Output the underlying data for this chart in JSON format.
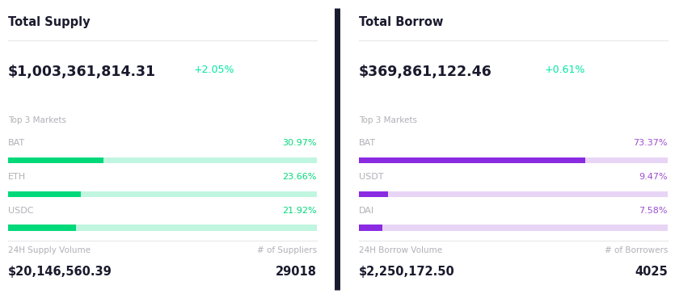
{
  "bg_color": "#ffffff",
  "supply": {
    "title": "Total Supply",
    "total": "$1,003,361,814.31",
    "change": "+2.05%",
    "change_color": "#00e8a2",
    "top3_label": "Top 3 Markets",
    "markets": [
      "BAT",
      "ETH",
      "USDC"
    ],
    "percentages": [
      30.97,
      23.66,
      21.92
    ],
    "pct_labels": [
      "30.97%",
      "23.66%",
      "21.92%"
    ],
    "bar_fill_color": "#00d97a",
    "bar_bg_color": "#c0f5e0",
    "pct_color": "#00d97a",
    "vol_label": "24H Supply Volume",
    "vol_value": "$20,146,560.39",
    "count_label": "# of Suppliers",
    "count_value": "29018"
  },
  "borrow": {
    "title": "Total Borrow",
    "total": "$369,861,122.46",
    "change": "+0.61%",
    "change_color": "#00e8a2",
    "top3_label": "Top 3 Markets",
    "markets": [
      "BAT",
      "USDT",
      "DAI"
    ],
    "percentages": [
      73.37,
      9.47,
      7.58
    ],
    "pct_labels": [
      "73.37%",
      "9.47%",
      "7.58%"
    ],
    "bar_fill_color": "#8a2be2",
    "bar_bg_color": "#e8d5f5",
    "pct_color": "#9b4fcf",
    "vol_label": "24H Borrow Volume",
    "vol_value": "$2,250,172.50",
    "count_label": "# of Borrowers",
    "count_value": "4025"
  },
  "label_color": "#b0b0b8",
  "market_label_color": "#b0b0b8",
  "title_color": "#1a1a2e",
  "value_color": "#1a1a2e",
  "divider_color": "#1a1a2e"
}
